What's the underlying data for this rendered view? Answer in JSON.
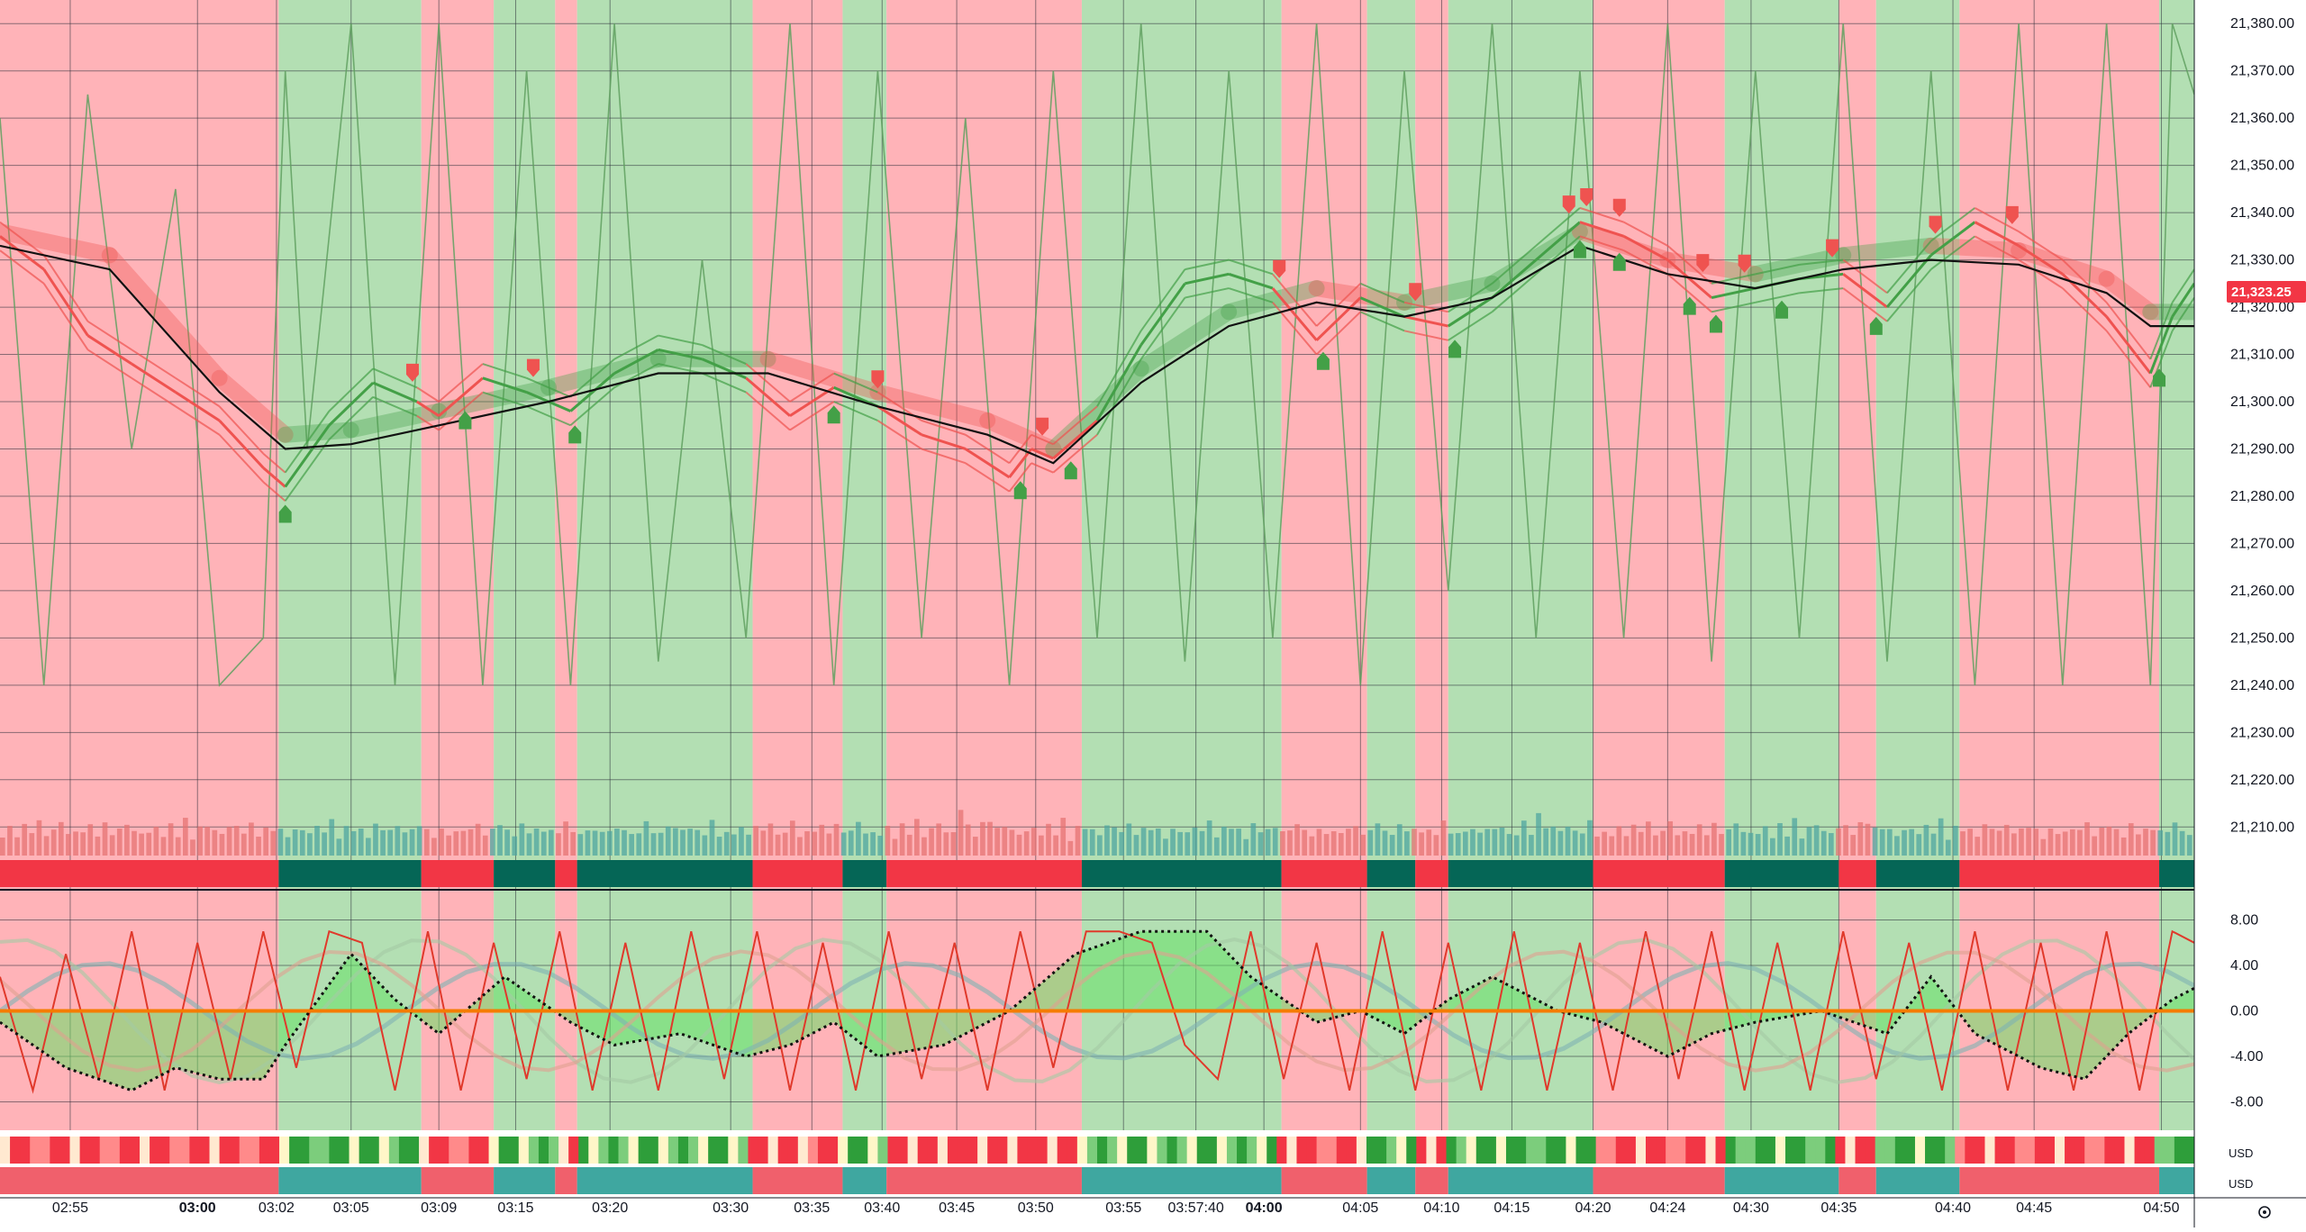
{
  "colors": {
    "bearish_zone": "#ffb3b8",
    "bullish_zone": "#b3dfb3",
    "bear_line": "#ef5350",
    "bull_line": "#43a047",
    "osc_line": "#5fa05f",
    "ma_line": "#111111",
    "price_label_bg": "#f23645",
    "trend_bear": "#f23645",
    "trend_bull": "#056656",
    "signal_up": "#43a047",
    "signal_down": "#ef5350",
    "grid": "#2a2e39"
  },
  "chart_data": [
    {
      "type": "line",
      "panel": "price",
      "ylim": [
        21203,
        21385
      ],
      "y_ticks": [
        "21,380.00",
        "21,370.00",
        "21,360.00",
        "21,350.00",
        "21,340.00",
        "21,330.00",
        "21,320.00",
        "21,310.00",
        "21,300.00",
        "21,290.00",
        "21,280.00",
        "21,270.00",
        "21,260.00",
        "21,250.00",
        "21,240.00",
        "21,230.00",
        "21,220.00",
        "21,210.00"
      ],
      "last_price_label": "21,323.25",
      "last_price": 21323.25,
      "zones": [
        {
          "from": 0,
          "to": 0.127,
          "trend": "bear"
        },
        {
          "from": 0.127,
          "to": 0.192,
          "trend": "bull"
        },
        {
          "from": 0.192,
          "to": 0.225,
          "trend": "bear"
        },
        {
          "from": 0.225,
          "to": 0.253,
          "trend": "bull"
        },
        {
          "from": 0.253,
          "to": 0.263,
          "trend": "bear"
        },
        {
          "from": 0.263,
          "to": 0.343,
          "trend": "bull"
        },
        {
          "from": 0.343,
          "to": 0.384,
          "trend": "bear"
        },
        {
          "from": 0.384,
          "to": 0.404,
          "trend": "bull"
        },
        {
          "from": 0.404,
          "to": 0.493,
          "trend": "bear"
        },
        {
          "from": 0.493,
          "to": 0.584,
          "trend": "bull"
        },
        {
          "from": 0.584,
          "to": 0.623,
          "trend": "bear"
        },
        {
          "from": 0.623,
          "to": 0.645,
          "trend": "bull"
        },
        {
          "from": 0.645,
          "to": 0.66,
          "trend": "bear"
        },
        {
          "from": 0.66,
          "to": 0.726,
          "trend": "bull"
        },
        {
          "from": 0.726,
          "to": 0.786,
          "trend": "bear"
        },
        {
          "from": 0.786,
          "to": 0.838,
          "trend": "bull"
        },
        {
          "from": 0.838,
          "to": 0.855,
          "trend": "bear"
        },
        {
          "from": 0.855,
          "to": 0.893,
          "trend": "bull"
        },
        {
          "from": 0.893,
          "to": 0.984,
          "trend": "bear"
        },
        {
          "from": 0.984,
          "to": 1.0,
          "trend": "bull"
        }
      ],
      "series": [
        {
          "role": "price",
          "x": [
            0,
            0.02,
            0.04,
            0.06,
            0.08,
            0.1,
            0.12,
            0.13,
            0.15,
            0.17,
            0.19,
            0.2,
            0.22,
            0.24,
            0.26,
            0.28,
            0.3,
            0.32,
            0.34,
            0.36,
            0.38,
            0.4,
            0.42,
            0.44,
            0.46,
            0.47,
            0.48,
            0.5,
            0.52,
            0.54,
            0.56,
            0.58,
            0.6,
            0.62,
            0.64,
            0.66,
            0.68,
            0.7,
            0.72,
            0.74,
            0.76,
            0.78,
            0.8,
            0.82,
            0.84,
            0.86,
            0.88,
            0.9,
            0.92,
            0.94,
            0.96,
            0.98,
            0.99,
            1.0
          ],
          "values": [
            21335,
            21328,
            21314,
            21308,
            21302,
            21296,
            21286,
            21282,
            21295,
            21304,
            21300,
            21297,
            21305,
            21302,
            21298,
            21306,
            21311,
            21309,
            21305,
            21297,
            21303,
            21299,
            21293,
            21290,
            21284,
            21290,
            21288,
            21296,
            21312,
            21325,
            21327,
            21324,
            21313,
            21322,
            21318,
            21316,
            21322,
            21330,
            21338,
            21335,
            21330,
            21322,
            21324,
            21326,
            21327,
            21320,
            21331,
            21338,
            21333,
            21327,
            21318,
            21306,
            21318,
            21325
          ]
        },
        {
          "role": "ma",
          "x": [
            0,
            0.05,
            0.1,
            0.13,
            0.16,
            0.2,
            0.25,
            0.3,
            0.35,
            0.4,
            0.45,
            0.48,
            0.52,
            0.56,
            0.6,
            0.64,
            0.68,
            0.72,
            0.76,
            0.8,
            0.84,
            0.88,
            0.92,
            0.96,
            0.98,
            1.0
          ],
          "values": [
            21333,
            21328,
            21302,
            21290,
            21291,
            21295,
            21300,
            21306,
            21306,
            21299,
            21293,
            21287,
            21304,
            21316,
            21321,
            21318,
            21322,
            21333,
            21327,
            21324,
            21328,
            21330,
            21329,
            21323,
            21316,
            21316
          ]
        },
        {
          "role": "oscillator",
          "x": [
            0,
            0.02,
            0.04,
            0.06,
            0.08,
            0.1,
            0.12,
            0.13,
            0.14,
            0.16,
            0.18,
            0.2,
            0.22,
            0.24,
            0.26,
            0.28,
            0.3,
            0.32,
            0.34,
            0.36,
            0.38,
            0.4,
            0.42,
            0.44,
            0.46,
            0.48,
            0.5,
            0.52,
            0.54,
            0.56,
            0.58,
            0.6,
            0.62,
            0.64,
            0.66,
            0.68,
            0.7,
            0.72,
            0.74,
            0.76,
            0.78,
            0.8,
            0.82,
            0.84,
            0.86,
            0.88,
            0.9,
            0.92,
            0.94,
            0.96,
            0.98,
            0.99,
            1.0
          ],
          "values": [
            21360,
            21240,
            21365,
            21290,
            21345,
            21240,
            21250,
            21370,
            21290,
            21380,
            21240,
            21380,
            21240,
            21370,
            21240,
            21380,
            21245,
            21330,
            21250,
            21380,
            21240,
            21370,
            21250,
            21360,
            21240,
            21370,
            21250,
            21380,
            21245,
            21370,
            21250,
            21380,
            21240,
            21370,
            21260,
            21380,
            21250,
            21370,
            21250,
            21380,
            21245,
            21370,
            21250,
            21380,
            21245,
            21370,
            21240,
            21380,
            21240,
            21380,
            21240,
            21380,
            21365
          ]
        }
      ],
      "signals_up": [
        0.13,
        0.212,
        0.262,
        0.38,
        0.465,
        0.488,
        0.603,
        0.663,
        0.72,
        0.738,
        0.77,
        0.782,
        0.812,
        0.855,
        0.984
      ],
      "signals_down": [
        0.188,
        0.243,
        0.4,
        0.475,
        0.583,
        0.645,
        0.715,
        0.723,
        0.738,
        0.776,
        0.795,
        0.835,
        0.882,
        0.917
      ]
    },
    {
      "type": "bar",
      "panel": "volume",
      "note": "volume histogram rendered along price panel bottom",
      "values_pattern": [
        0.5,
        0.55,
        0.45,
        0.6,
        0.5,
        0.7,
        0.4,
        0.55,
        0.65,
        0.5,
        0.45,
        0.6,
        0.58,
        0.5,
        0.62,
        0.48,
        0.52,
        0.66,
        0.5,
        0.44
      ]
    },
    {
      "type": "area",
      "panel": "oscillator",
      "ylim": [
        -10.5,
        10.5
      ],
      "y_ticks": [
        "8.00",
        "4.00",
        "0.00",
        "-4.00",
        "-8.00"
      ],
      "zero_line": 0,
      "series": [
        {
          "role": "dotted_main",
          "x": [
            0,
            0.03,
            0.06,
            0.08,
            0.1,
            0.12,
            0.13,
            0.16,
            0.18,
            0.2,
            0.23,
            0.26,
            0.28,
            0.31,
            0.34,
            0.36,
            0.38,
            0.4,
            0.43,
            0.46,
            0.49,
            0.52,
            0.55,
            0.57,
            0.6,
            0.62,
            0.64,
            0.66,
            0.68,
            0.71,
            0.73,
            0.76,
            0.78,
            0.8,
            0.83,
            0.86,
            0.88,
            0.9,
            0.93,
            0.95,
            0.97,
            0.99,
            1.0
          ],
          "values": [
            -1,
            -5,
            -7,
            -5,
            -6,
            -6,
            -3,
            5,
            1,
            -2,
            3,
            -1,
            -3,
            -2,
            -4,
            -3,
            -1,
            -4,
            -3,
            0,
            5,
            7,
            7,
            3,
            -1,
            0,
            -2,
            1,
            3,
            0,
            -1,
            -4,
            -2,
            -1,
            0,
            -2,
            3,
            -2,
            -5,
            -6,
            -2,
            1,
            2
          ]
        },
        {
          "role": "fast_red",
          "x": [
            0,
            0.015,
            0.03,
            0.045,
            0.06,
            0.075,
            0.09,
            0.105,
            0.12,
            0.135,
            0.15,
            0.165,
            0.18,
            0.195,
            0.21,
            0.225,
            0.24,
            0.255,
            0.27,
            0.285,
            0.3,
            0.315,
            0.33,
            0.345,
            0.36,
            0.375,
            0.39,
            0.405,
            0.42,
            0.435,
            0.45,
            0.465,
            0.48,
            0.495,
            0.51,
            0.525,
            0.54,
            0.555,
            0.57,
            0.585,
            0.6,
            0.615,
            0.63,
            0.645,
            0.66,
            0.675,
            0.69,
            0.705,
            0.72,
            0.735,
            0.75,
            0.765,
            0.78,
            0.795,
            0.81,
            0.825,
            0.84,
            0.855,
            0.87,
            0.885,
            0.9,
            0.915,
            0.93,
            0.945,
            0.96,
            0.975,
            0.99,
            1.0
          ],
          "values": [
            3,
            -7,
            5,
            -6,
            7,
            -7,
            6,
            -6,
            7,
            -5,
            7,
            6,
            -7,
            7,
            -7,
            6,
            -6,
            7,
            -7,
            6,
            -7,
            7,
            -6,
            7,
            -7,
            6,
            -7,
            7,
            -6,
            6,
            -7,
            7,
            -5,
            7,
            7,
            6,
            -3,
            -6,
            7,
            -6,
            6,
            -7,
            7,
            -7,
            6,
            -7,
            7,
            -7,
            6,
            -7,
            7,
            -6,
            7,
            -7,
            6,
            -7,
            7,
            -6,
            6,
            -7,
            7,
            -7,
            6,
            -7,
            7,
            -7,
            7,
            6
          ]
        }
      ]
    }
  ],
  "x_axis": {
    "labels": [
      {
        "text": "02:55",
        "pos": 0.032,
        "bold": false
      },
      {
        "text": "03:00",
        "pos": 0.09,
        "bold": true
      },
      {
        "text": "03:02",
        "pos": 0.126,
        "bold": false
      },
      {
        "text": "03:05",
        "pos": 0.16,
        "bold": false
      },
      {
        "text": "03:09",
        "pos": 0.2,
        "bold": false
      },
      {
        "text": "03:15",
        "pos": 0.235,
        "bold": false
      },
      {
        "text": "03:20",
        "pos": 0.278,
        "bold": false
      },
      {
        "text": "03:30",
        "pos": 0.333,
        "bold": false
      },
      {
        "text": "03:35",
        "pos": 0.37,
        "bold": false
      },
      {
        "text": "03:40",
        "pos": 0.402,
        "bold": false
      },
      {
        "text": "03:45",
        "pos": 0.436,
        "bold": false
      },
      {
        "text": "03:50",
        "pos": 0.472,
        "bold": false
      },
      {
        "text": "03:55",
        "pos": 0.512,
        "bold": false
      },
      {
        "text": "03:57:40",
        "pos": 0.545,
        "bold": false
      },
      {
        "text": "04:00",
        "pos": 0.576,
        "bold": true
      },
      {
        "text": "04:05",
        "pos": 0.62,
        "bold": false
      },
      {
        "text": "04:10",
        "pos": 0.657,
        "bold": false
      },
      {
        "text": "04:15",
        "pos": 0.689,
        "bold": false
      },
      {
        "text": "04:20",
        "pos": 0.726,
        "bold": false
      },
      {
        "text": "04:24",
        "pos": 0.76,
        "bold": false
      },
      {
        "text": "04:30",
        "pos": 0.798,
        "bold": false
      },
      {
        "text": "04:35",
        "pos": 0.838,
        "bold": false
      },
      {
        "text": "04:40",
        "pos": 0.89,
        "bold": false
      },
      {
        "text": "04:45",
        "pos": 0.927,
        "bold": false
      },
      {
        "text": "04:50",
        "pos": 0.985,
        "bold": false
      }
    ]
  },
  "sub_panels": {
    "heat_label": "USD",
    "trend_label": "USD",
    "settings_icon": "gear-icon"
  }
}
